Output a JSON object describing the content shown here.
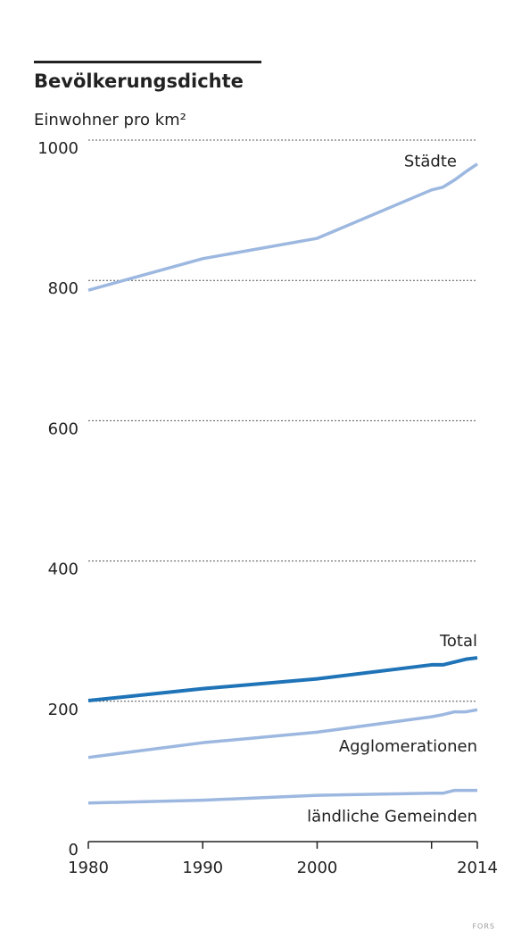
{
  "chart_data": {
    "type": "line",
    "title": "Bevölkerungsdichte",
    "y_label": "Einwohner pro km²",
    "x": [
      1980,
      1990,
      2000,
      2010,
      2011,
      2012,
      2013,
      2014
    ],
    "series": [
      {
        "name": "Städte",
        "color": "#9db8e0",
        "values": [
          786,
          831,
          860,
          929,
          933,
          943,
          955,
          966
        ]
      },
      {
        "name": "Total",
        "color": "#1f73b7",
        "values": [
          201,
          218,
          232,
          252,
          252,
          256,
          260,
          262
        ]
      },
      {
        "name": "Agglomerationen",
        "color": "#9db8e0",
        "values": [
          120,
          141,
          156,
          178,
          181,
          185,
          185,
          188
        ]
      },
      {
        "name": "ländliche Gemeinden",
        "color": "#9db8e0",
        "values": [
          55,
          59,
          66,
          69,
          69,
          73,
          73,
          73
        ]
      }
    ],
    "xlim": [
      1980,
      2014
    ],
    "xticks": [
      1980,
      1990,
      2000,
      {
        "value": 2010,
        "label": null
      },
      2014
    ],
    "ylim": [
      0,
      1000
    ],
    "yticks": [
      0,
      200,
      400,
      600,
      800,
      1000
    ],
    "grid": true,
    "source": "FORS"
  }
}
